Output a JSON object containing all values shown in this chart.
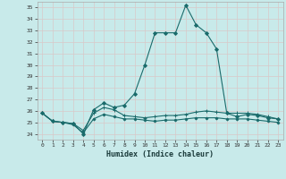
{
  "xlabel": "Humidex (Indice chaleur)",
  "bg_color": "#c8eaea",
  "grid_color": "#d8c8c8",
  "line_color": "#1a6b6b",
  "xlim": [
    -0.5,
    23.5
  ],
  "ylim": [
    23.5,
    35.5
  ],
  "yticks": [
    24,
    25,
    26,
    27,
    28,
    29,
    30,
    31,
    32,
    33,
    34,
    35
  ],
  "xticks": [
    0,
    1,
    2,
    3,
    4,
    5,
    6,
    7,
    8,
    9,
    10,
    11,
    12,
    13,
    14,
    15,
    16,
    17,
    18,
    19,
    20,
    21,
    22,
    23
  ],
  "series": [
    [
      25.8,
      25.1,
      25.0,
      24.9,
      24.0,
      26.1,
      26.7,
      26.3,
      26.5,
      27.5,
      30.0,
      32.8,
      32.8,
      32.8,
      35.2,
      33.5,
      32.8,
      31.4,
      25.8,
      25.5,
      25.7,
      25.6,
      25.4,
      25.3
    ],
    [
      25.8,
      25.1,
      25.0,
      24.9,
      24.3,
      25.8,
      26.3,
      26.1,
      25.6,
      25.5,
      25.4,
      25.5,
      25.6,
      25.6,
      25.7,
      25.9,
      26.0,
      25.9,
      25.8,
      25.8,
      25.8,
      25.7,
      25.5,
      25.3
    ],
    [
      25.8,
      25.1,
      25.0,
      24.8,
      24.1,
      25.3,
      25.7,
      25.5,
      25.3,
      25.3,
      25.2,
      25.1,
      25.2,
      25.2,
      25.3,
      25.4,
      25.4,
      25.4,
      25.3,
      25.3,
      25.3,
      25.2,
      25.1,
      25.0
    ]
  ]
}
